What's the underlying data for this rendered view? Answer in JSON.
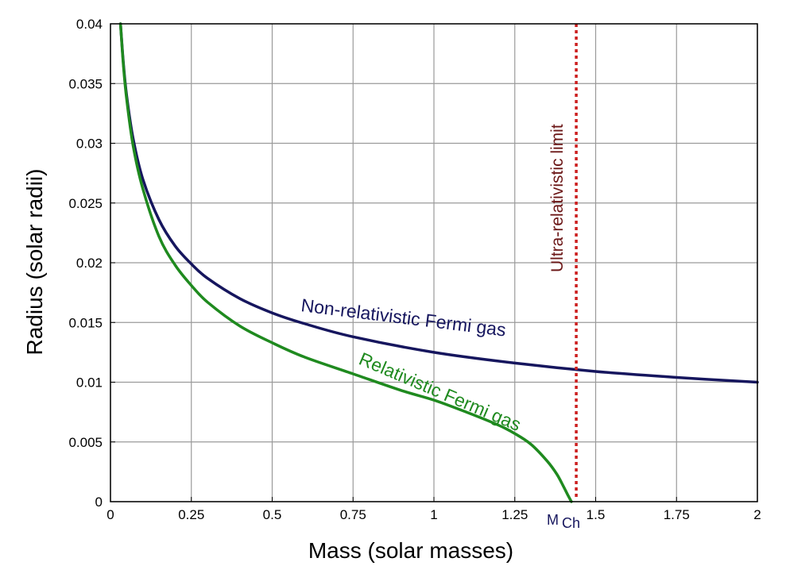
{
  "chart_data": {
    "type": "line",
    "xlabel": "Mass (solar masses)",
    "ylabel": "Radius (solar radii)",
    "xlim": [
      0,
      2
    ],
    "ylim": [
      0,
      0.04
    ],
    "grid": true,
    "x_ticks": [
      {
        "value": 0,
        "label": "0"
      },
      {
        "value": 0.25,
        "label": "0.25"
      },
      {
        "value": 0.5,
        "label": "0.5"
      },
      {
        "value": 0.75,
        "label": "0.75"
      },
      {
        "value": 1,
        "label": "1"
      },
      {
        "value": 1.25,
        "label": "1.25"
      },
      {
        "value": 1.5,
        "label": "1.5"
      },
      {
        "value": 1.75,
        "label": "1.75"
      },
      {
        "value": 2,
        "label": "2"
      }
    ],
    "y_ticks": [
      {
        "value": 0,
        "label": "0"
      },
      {
        "value": 0.005,
        "label": "0.005"
      },
      {
        "value": 0.01,
        "label": "0.01"
      },
      {
        "value": 0.015,
        "label": "0.015"
      },
      {
        "value": 0.02,
        "label": "0.02"
      },
      {
        "value": 0.025,
        "label": "0.025"
      },
      {
        "value": 0.03,
        "label": "0.03"
      },
      {
        "value": 0.035,
        "label": "0.035"
      },
      {
        "value": 0.04,
        "label": "0.04"
      }
    ],
    "series": [
      {
        "name": "Non-relativistic Fermi gas",
        "color": "#16165e",
        "x": [
          0.031,
          0.04,
          0.05,
          0.07,
          0.1,
          0.15,
          0.2,
          0.25,
          0.3,
          0.4,
          0.5,
          0.6,
          0.75,
          1.0,
          1.25,
          1.5,
          1.75,
          2.0
        ],
        "y": [
          0.04,
          0.0367,
          0.034,
          0.0304,
          0.027,
          0.0236,
          0.0214,
          0.0199,
          0.0187,
          0.017,
          0.0158,
          0.0149,
          0.0138,
          0.0125,
          0.0116,
          0.0109,
          0.0104,
          0.01
        ]
      },
      {
        "name": "Relativistic Fermi gas",
        "color": "#1f8a1f",
        "x": [
          0.031,
          0.04,
          0.05,
          0.07,
          0.1,
          0.15,
          0.2,
          0.25,
          0.3,
          0.4,
          0.5,
          0.6,
          0.75,
          0.9,
          1.0,
          1.1,
          1.2,
          1.25,
          1.3,
          1.35,
          1.38,
          1.4,
          1.415,
          1.425
        ],
        "y": [
          0.04,
          0.0365,
          0.0337,
          0.0298,
          0.0262,
          0.0222,
          0.0198,
          0.0181,
          0.0167,
          0.0147,
          0.0133,
          0.0121,
          0.0107,
          0.0093,
          0.0085,
          0.0075,
          0.0064,
          0.0057,
          0.0048,
          0.0034,
          0.0023,
          0.0013,
          0.0005,
          0.0
        ]
      }
    ],
    "reference_line": {
      "label": "Ultra-relativistic limit",
      "x": 1.44,
      "color": "#cc1f1f",
      "label_color": "#6b1616",
      "style": "dotted"
    },
    "annotations": {
      "mch_main": "M",
      "mch_sub": "Ch",
      "mch_x": 1.44,
      "mch_color": "#16165e"
    }
  }
}
